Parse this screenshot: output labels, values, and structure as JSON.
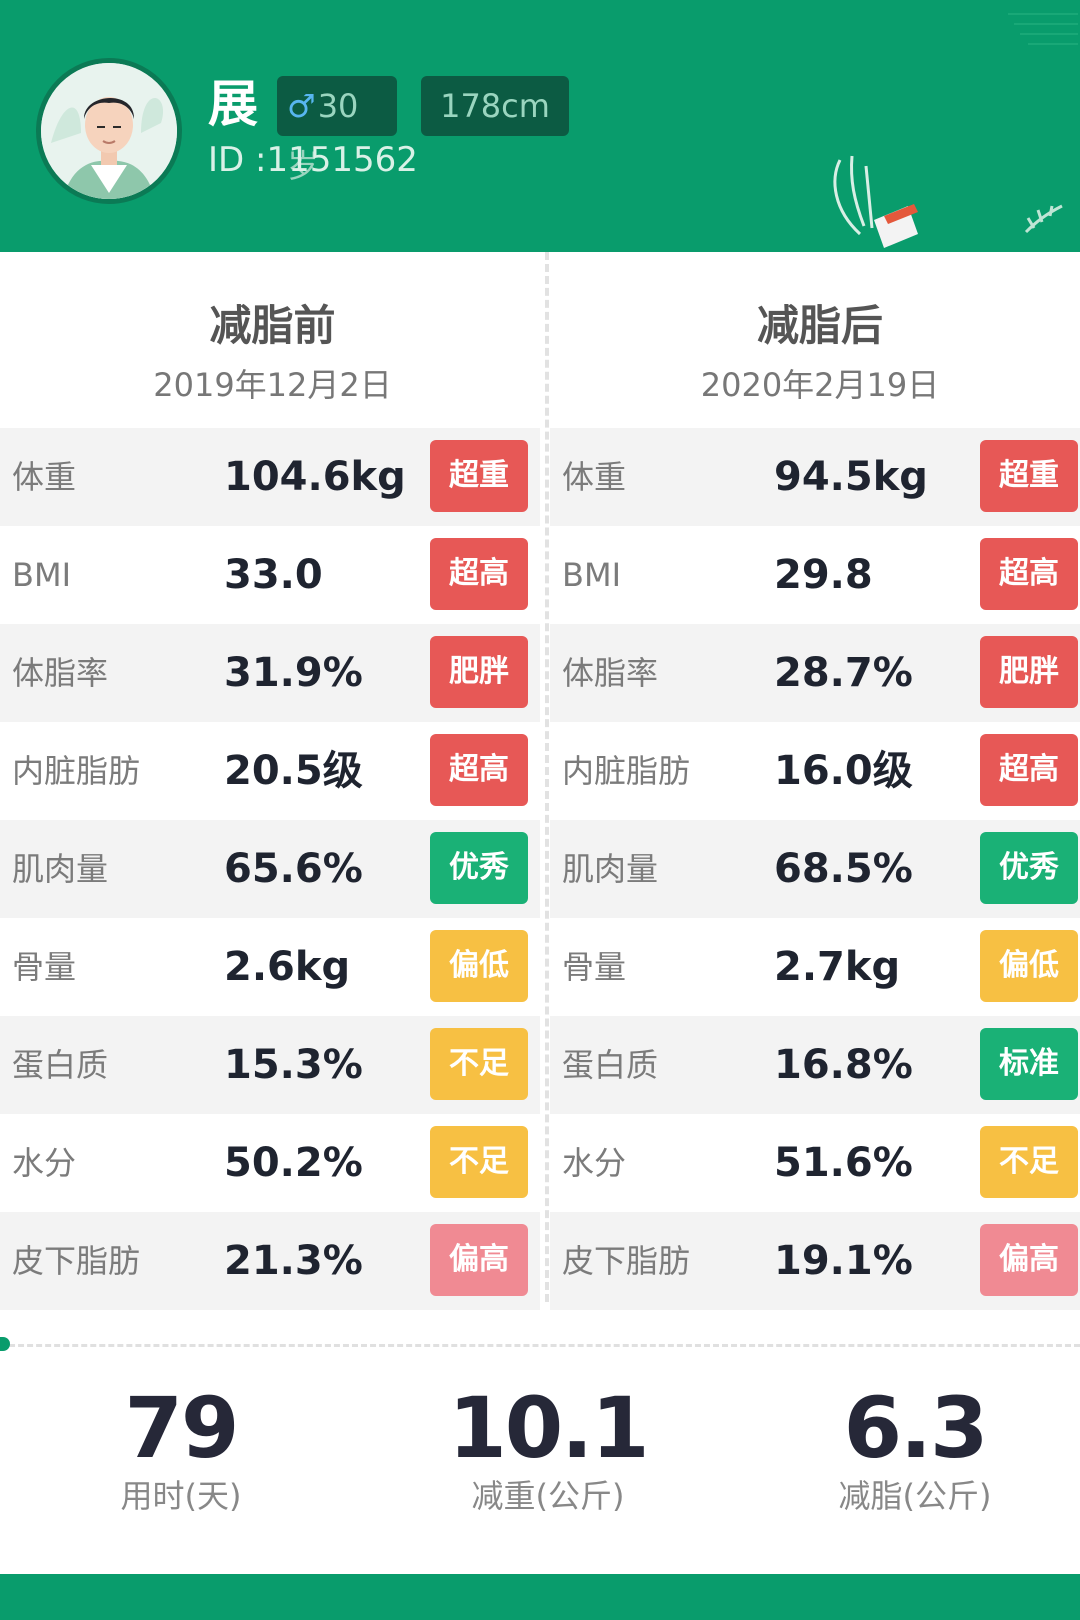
{
  "profile": {
    "name": "展",
    "gender_symbol": "♂",
    "age": "30岁",
    "height": "178cm",
    "id": "ID :1151562"
  },
  "before": {
    "title": "减脂前",
    "date": "2019年12月2日",
    "metrics": [
      {
        "label": "体重",
        "value": "104.6kg",
        "status": "超重",
        "status_color": "#e75856"
      },
      {
        "label": "BMI",
        "value": "33.0",
        "status": "超高",
        "status_color": "#e75856"
      },
      {
        "label": "体脂率",
        "value": "31.9%",
        "status": "肥胖",
        "status_color": "#e75856"
      },
      {
        "label": "内脏脂肪",
        "value": "20.5级",
        "status": "超高",
        "status_color": "#e75856"
      },
      {
        "label": "肌肉量",
        "value": "65.6%",
        "status": "优秀",
        "status_color": "#1ab176"
      },
      {
        "label": "骨量",
        "value": "2.6kg",
        "status": "偏低",
        "status_color": "#f7c043"
      },
      {
        "label": "蛋白质",
        "value": "15.3%",
        "status": "不足",
        "status_color": "#f7c043"
      },
      {
        "label": "水分",
        "value": "50.2%",
        "status": "不足",
        "status_color": "#f7c043"
      },
      {
        "label": "皮下脂肪",
        "value": "21.3%",
        "status": "偏高",
        "status_color": "#f08a93"
      }
    ]
  },
  "after": {
    "title": "减脂后",
    "date": "2020年2月19日",
    "metrics": [
      {
        "label": "体重",
        "value": "94.5kg",
        "status": "超重",
        "status_color": "#e75856"
      },
      {
        "label": "BMI",
        "value": "29.8",
        "status": "超高",
        "status_color": "#e75856"
      },
      {
        "label": "体脂率",
        "value": "28.7%",
        "status": "肥胖",
        "status_color": "#e75856"
      },
      {
        "label": "内脏脂肪",
        "value": "16.0级",
        "status": "超高",
        "status_color": "#e75856"
      },
      {
        "label": "肌肉量",
        "value": "68.5%",
        "status": "优秀",
        "status_color": "#1ab176"
      },
      {
        "label": "骨量",
        "value": "2.7kg",
        "status": "偏低",
        "status_color": "#f7c043"
      },
      {
        "label": "蛋白质",
        "value": "16.8%",
        "status": "标准",
        "status_color": "#1ab176"
      },
      {
        "label": "水分",
        "value": "51.6%",
        "status": "不足",
        "status_color": "#f7c043"
      },
      {
        "label": "皮下脂肪",
        "value": "19.1%",
        "status": "偏高",
        "status_color": "#f08a93"
      }
    ]
  },
  "summary": [
    {
      "value": "79",
      "label": "用时(天)"
    },
    {
      "value": "10.1",
      "label": "减重(公斤)"
    },
    {
      "value": "6.3",
      "label": "减脂(公斤)"
    }
  ],
  "colors": {
    "brand_green": "#099c6c",
    "danger": "#e75856",
    "good": "#1ab176",
    "warning": "#f7c043",
    "mild": "#f08a93"
  },
  "icons": {
    "avatar": "user-avatar-illustration",
    "gender": "male-symbol",
    "decoration": "hand-holding-book-illustration"
  }
}
